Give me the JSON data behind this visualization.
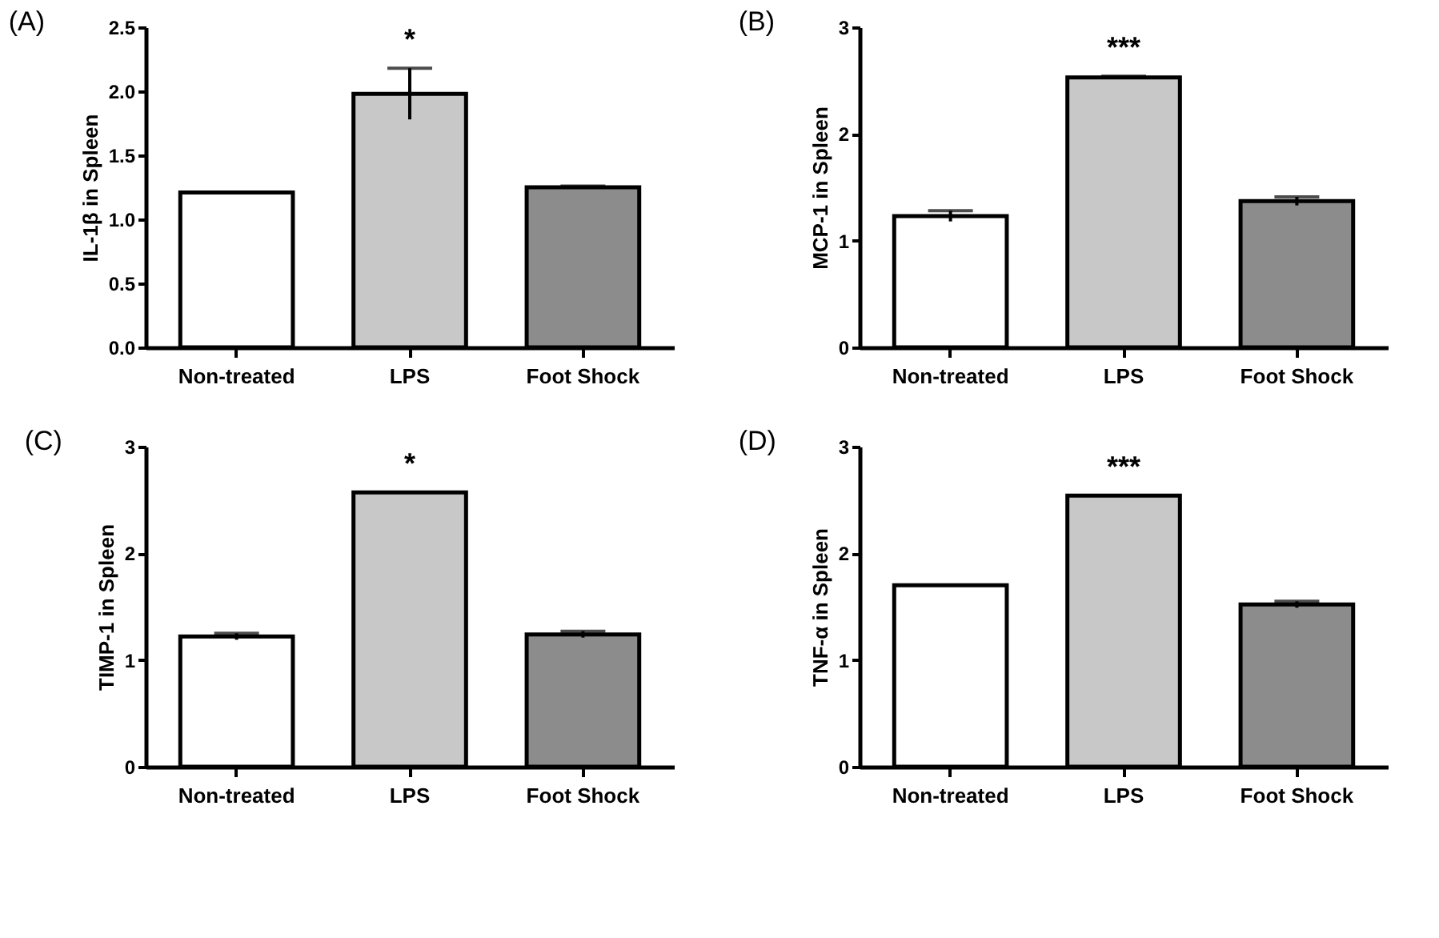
{
  "chart_data": [
    {
      "type": "bar",
      "title": "(A)",
      "ylabel": "IL-1β  in Spleen",
      "categories": [
        "Non-treated",
        "LPS",
        "Foot Shock"
      ],
      "values": [
        1.21,
        1.98,
        1.25
      ],
      "errors": [
        null,
        0.2,
        0.01
      ],
      "colors": [
        "#ffffff",
        "#c8c8c8",
        "#8c8c8c"
      ],
      "ylim": [
        0,
        2.5
      ],
      "yticks": [
        {
          "value": 0,
          "label": "0.0"
        },
        0.5,
        {
          "value": 1,
          "label": "1.0"
        },
        1.5,
        {
          "value": 2,
          "label": "2.0"
        },
        2.5
      ],
      "grid": false,
      "annotations": [
        "*"
      ]
    },
    {
      "type": "bar",
      "title": "(B)",
      "ylabel": "MCP-1  in  Spleen",
      "categories": [
        "Non-treated",
        "LPS",
        "Foot Shock"
      ],
      "values": [
        1.23,
        2.53,
        1.37
      ],
      "errors": [
        0.05,
        0.01,
        0.04
      ],
      "colors": [
        "#ffffff",
        "#c8c8c8",
        "#8c8c8c"
      ],
      "ylim": [
        0,
        3
      ],
      "yticks": [
        0,
        1,
        2,
        3
      ],
      "grid": false,
      "annotations": [
        "***"
      ]
    },
    {
      "type": "bar",
      "title": "(C)",
      "ylabel": "TIMP-1  in  Spleen",
      "categories": [
        "Non-treated",
        "LPS",
        "Foot Shock"
      ],
      "values": [
        1.22,
        2.57,
        1.24
      ],
      "errors": [
        0.03,
        null,
        0.03
      ],
      "colors": [
        "#ffffff",
        "#c8c8c8",
        "#8c8c8c"
      ],
      "ylim": [
        0,
        3
      ],
      "yticks": [
        0,
        1,
        2,
        3
      ],
      "grid": false,
      "annotations": [
        "*"
      ]
    },
    {
      "type": "bar",
      "title": "(D)",
      "ylabel": "TNF-α   in  Spleen",
      "categories": [
        "Non-treated",
        "LPS",
        "Foot Shock"
      ],
      "values": [
        1.7,
        2.54,
        1.52
      ],
      "errors": [
        null,
        null,
        0.03
      ],
      "colors": [
        "#ffffff",
        "#c8c8c8",
        "#8c8c8c"
      ],
      "ylim": [
        0,
        3
      ],
      "yticks": [
        0,
        1,
        2,
        3
      ],
      "grid": false,
      "annotations": [
        "***"
      ]
    }
  ]
}
